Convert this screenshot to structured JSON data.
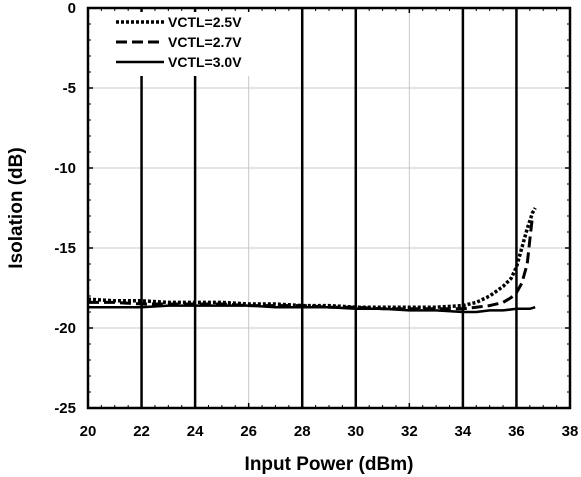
{
  "chart_data": {
    "type": "line",
    "title": "",
    "xlabel": "Input Power (dBm)",
    "ylabel": "Isolation (dB)",
    "xlim": [
      20,
      38
    ],
    "ylim": [
      -25,
      0
    ],
    "x_ticks": [
      20,
      22,
      24,
      26,
      28,
      30,
      32,
      34,
      36,
      38
    ],
    "y_ticks": [
      0,
      -5,
      -10,
      -15,
      -20,
      -25
    ],
    "x_tick_labels": [
      "20",
      "22",
      "24",
      "26",
      "28",
      "30",
      "32",
      "34",
      "36",
      "38"
    ],
    "y_tick_labels": [
      "0",
      "-5",
      "-10",
      "-15",
      "-20",
      "-25"
    ],
    "grid": true,
    "emphasized_vertical_lines": [
      22,
      24,
      28,
      30,
      34,
      36
    ],
    "legend_position": "top-left",
    "series": [
      {
        "name": "VCTL=2.5V",
        "style": "dotted",
        "x": [
          20,
          21,
          22,
          23,
          24,
          25,
          26,
          27,
          28,
          29,
          30,
          31,
          32,
          33,
          34,
          34.5,
          35,
          35.5,
          35.8,
          36.0,
          36.2,
          36.4,
          36.6,
          36.7
        ],
        "y": [
          -18.2,
          -18.3,
          -18.3,
          -18.4,
          -18.4,
          -18.4,
          -18.5,
          -18.5,
          -18.6,
          -18.6,
          -18.7,
          -18.7,
          -18.7,
          -18.7,
          -18.6,
          -18.4,
          -18.0,
          -17.4,
          -16.9,
          -16.2,
          -15.0,
          -13.8,
          -12.8,
          -12.5
        ]
      },
      {
        "name": "VCTL=2.7V",
        "style": "dashed",
        "x": [
          20,
          21,
          22,
          23,
          24,
          25,
          26,
          27,
          28,
          29,
          30,
          31,
          32,
          33,
          34,
          34.5,
          35,
          35.5,
          35.8,
          36.0,
          36.2,
          36.4,
          36.5,
          36.6
        ],
        "y": [
          -18.4,
          -18.4,
          -18.5,
          -18.5,
          -18.5,
          -18.5,
          -18.6,
          -18.6,
          -18.6,
          -18.7,
          -18.7,
          -18.8,
          -18.8,
          -18.8,
          -18.8,
          -18.7,
          -18.6,
          -18.4,
          -18.1,
          -17.8,
          -17.2,
          -16.0,
          -14.5,
          -13.0
        ]
      },
      {
        "name": "VCTL=3.0V",
        "style": "solid",
        "x": [
          20,
          21,
          22,
          23,
          24,
          25,
          26,
          27,
          28,
          29,
          30,
          31,
          32,
          33,
          34,
          34.5,
          35,
          35.5,
          36,
          36.5,
          36.7
        ],
        "y": [
          -18.7,
          -18.7,
          -18.7,
          -18.6,
          -18.6,
          -18.6,
          -18.6,
          -18.7,
          -18.7,
          -18.7,
          -18.8,
          -18.8,
          -18.9,
          -18.9,
          -19.0,
          -19.0,
          -18.9,
          -18.9,
          -18.8,
          -18.8,
          -18.7
        ]
      }
    ]
  }
}
